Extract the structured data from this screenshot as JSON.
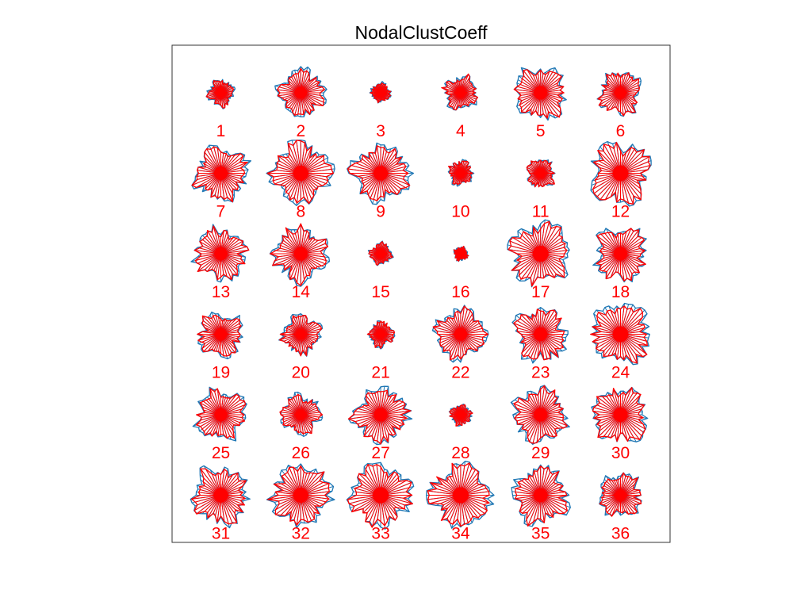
{
  "chart_data": {
    "type": "radial-glyph-grid",
    "title": "NodalClustCoeff",
    "grid": {
      "rows": 6,
      "cols": 6
    },
    "colors": {
      "series_a": "#1f77b4",
      "series_b": "#ff0000",
      "label": "#ff0000",
      "frame": "#333333"
    },
    "series_order": [
      "series_a",
      "series_b"
    ],
    "glyphs": [
      {
        "label": "1",
        "size": 0.42
      },
      {
        "label": "2",
        "size": 0.75
      },
      {
        "label": "3",
        "size": 0.3
      },
      {
        "label": "4",
        "size": 0.52
      },
      {
        "label": "5",
        "size": 0.85
      },
      {
        "label": "6",
        "size": 0.68
      },
      {
        "label": "7",
        "size": 0.85
      },
      {
        "label": "8",
        "size": 0.95
      },
      {
        "label": "9",
        "size": 0.9
      },
      {
        "label": "10",
        "size": 0.38
      },
      {
        "label": "11",
        "size": 0.45
      },
      {
        "label": "12",
        "size": 0.98
      },
      {
        "label": "13",
        "size": 0.82
      },
      {
        "label": "14",
        "size": 0.85
      },
      {
        "label": "15",
        "size": 0.35
      },
      {
        "label": "16",
        "size": 0.22
      },
      {
        "label": "17",
        "size": 1.0
      },
      {
        "label": "18",
        "size": 0.85
      },
      {
        "label": "19",
        "size": 0.72
      },
      {
        "label": "20",
        "size": 0.6
      },
      {
        "label": "21",
        "size": 0.4
      },
      {
        "label": "22",
        "size": 0.8
      },
      {
        "label": "23",
        "size": 0.85
      },
      {
        "label": "24",
        "size": 0.98
      },
      {
        "label": "25",
        "size": 0.8
      },
      {
        "label": "26",
        "size": 0.62
      },
      {
        "label": "27",
        "size": 0.85
      },
      {
        "label": "28",
        "size": 0.32
      },
      {
        "label": "29",
        "size": 0.85
      },
      {
        "label": "30",
        "size": 0.9
      },
      {
        "label": "31",
        "size": 0.92
      },
      {
        "label": "32",
        "size": 0.95
      },
      {
        "label": "33",
        "size": 1.0
      },
      {
        "label": "34",
        "size": 1.0
      },
      {
        "label": "35",
        "size": 0.88
      },
      {
        "label": "36",
        "size": 0.7
      }
    ]
  }
}
